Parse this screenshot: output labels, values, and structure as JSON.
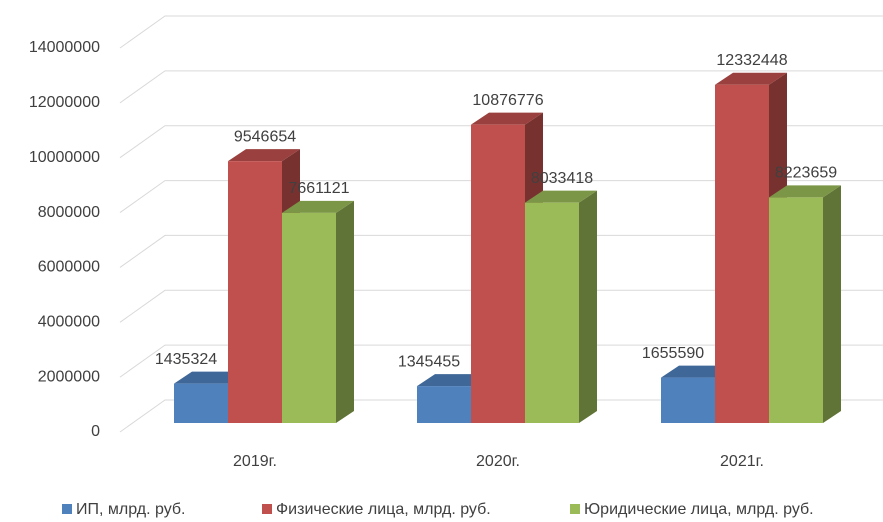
{
  "chart_data": {
    "type": "bar3d",
    "categories": [
      "2019г.",
      "2020г.",
      "2021г."
    ],
    "series": [
      {
        "name": "ИП, млрд. руб.",
        "color": "#4f81bd",
        "values": [
          1435324,
          1345455,
          1655590
        ]
      },
      {
        "name": "Физические лица, млрд. руб.",
        "color": "#c0504d",
        "values": [
          9546654,
          10876776,
          12332448
        ]
      },
      {
        "name": "Юридические лица, млрд. руб.",
        "color": "#9bbb59",
        "values": [
          7661121,
          8033418,
          8223659
        ]
      }
    ],
    "ylim": [
      0,
      14000000
    ],
    "yticks": [
      0,
      2000000,
      4000000,
      6000000,
      8000000,
      10000000,
      12000000,
      14000000
    ],
    "grid": true,
    "legend": "bottom"
  }
}
